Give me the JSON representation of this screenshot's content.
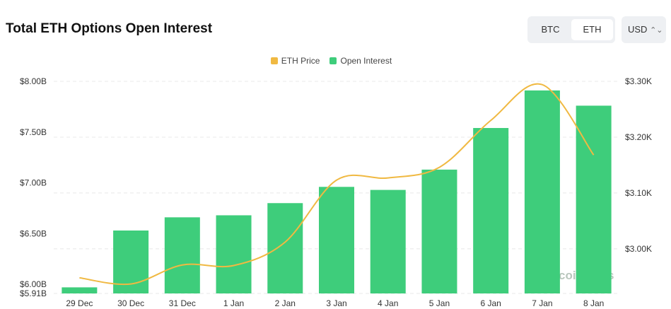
{
  "header": {
    "title": "Total ETH Options Open Interest",
    "tabs": [
      {
        "label": "BTC",
        "active": false
      },
      {
        "label": "ETH",
        "active": true
      }
    ],
    "currency": "USD"
  },
  "watermark": "coinglass",
  "chart_data": {
    "type": "bar",
    "title": "Total ETH Options Open Interest",
    "categories": [
      "29 Dec",
      "30 Dec",
      "31 Dec",
      "1 Jan",
      "2 Jan",
      "3 Jan",
      "4 Jan",
      "5 Jan",
      "6 Jan",
      "7 Jan",
      "8 Jan"
    ],
    "series": [
      {
        "name": "Open Interest",
        "type": "bar",
        "axis": "left",
        "color": "#3ecd7b",
        "values": [
          5.97,
          6.53,
          6.66,
          6.68,
          6.8,
          6.96,
          6.93,
          7.13,
          7.54,
          7.91,
          7.76
        ]
      },
      {
        "name": "ETH Price",
        "type": "line",
        "axis": "right",
        "color": "#f0b942",
        "values": [
          2.948,
          2.937,
          2.971,
          2.97,
          3.012,
          3.123,
          3.127,
          3.146,
          3.23,
          3.294,
          3.168
        ]
      }
    ],
    "left_axis": {
      "ticks": [
        "$8.00B",
        "$7.50B",
        "$7.00B",
        "$6.50B",
        "$6.00B",
        "$5.91B"
      ],
      "tick_values": [
        8.0,
        7.5,
        7.0,
        6.5,
        6.0,
        5.91
      ],
      "range": [
        5.91,
        8.0
      ],
      "unit": "B USD"
    },
    "right_axis": {
      "ticks": [
        "$3.30K",
        "$3.20K",
        "$3.10K",
        "$3.00K"
      ],
      "tick_values": [
        3.3,
        3.2,
        3.1,
        3.0
      ],
      "range": [
        2.92,
        3.3
      ],
      "unit": "K USD"
    },
    "grid": true,
    "legend": "top-center"
  }
}
